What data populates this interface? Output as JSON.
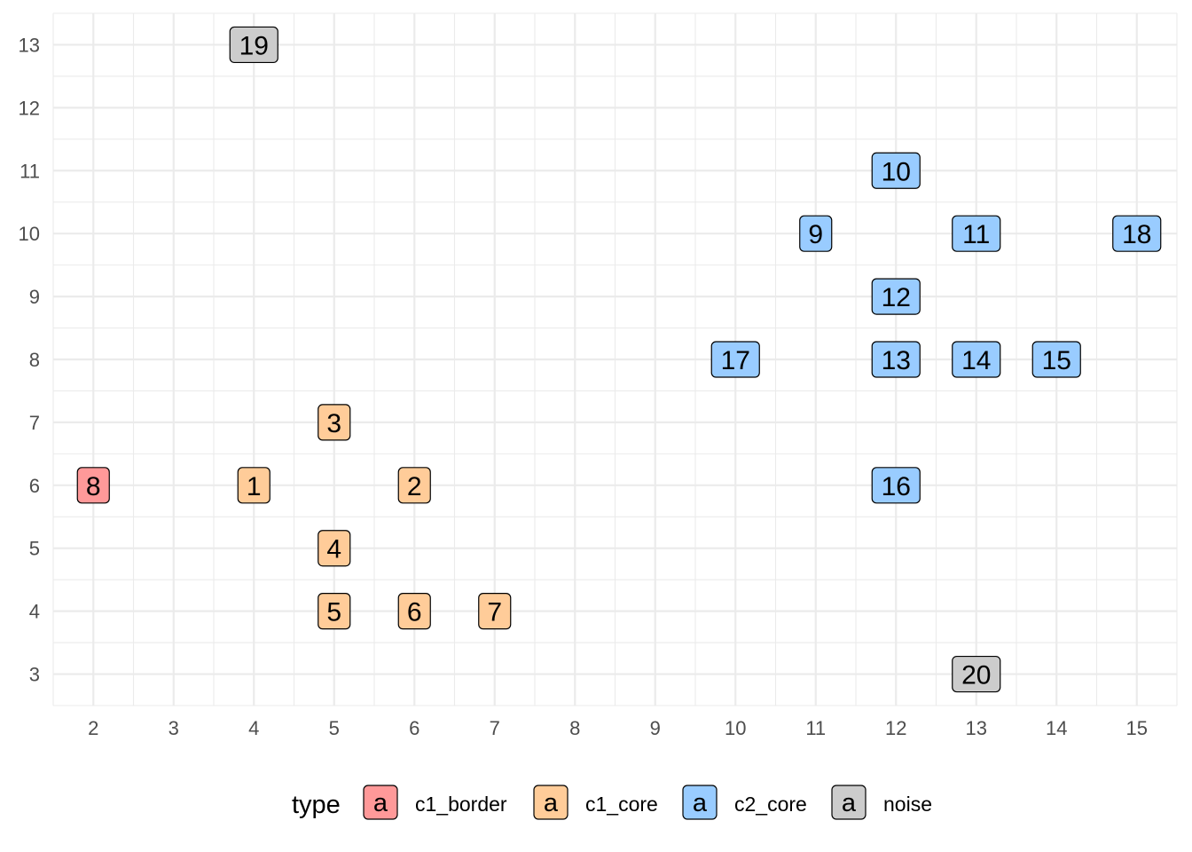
{
  "chart_data": {
    "type": "scatter",
    "title": "",
    "xlabel": "",
    "ylabel": "",
    "xlim": [
      1.5,
      15.5
    ],
    "ylim": [
      2.5,
      13.5
    ],
    "x_ticks": [
      2,
      3,
      4,
      5,
      6,
      7,
      8,
      9,
      10,
      11,
      12,
      13,
      14,
      15
    ],
    "y_ticks": [
      3,
      4,
      5,
      6,
      7,
      8,
      9,
      10,
      11,
      12,
      13
    ],
    "grid": true,
    "legend": {
      "title": "type",
      "placement": "bottom",
      "key_glyph": "a",
      "entries": [
        {
          "name": "c1_border",
          "color": "#ff9999"
        },
        {
          "name": "c1_core",
          "color": "#ffcc99"
        },
        {
          "name": "c2_core",
          "color": "#99ccff"
        },
        {
          "name": "noise",
          "color": "#cccccc"
        }
      ]
    },
    "points": [
      {
        "label": "1",
        "x": 4,
        "y": 6,
        "type": "c1_core"
      },
      {
        "label": "2",
        "x": 6,
        "y": 6,
        "type": "c1_core"
      },
      {
        "label": "3",
        "x": 5,
        "y": 7,
        "type": "c1_core"
      },
      {
        "label": "4",
        "x": 5,
        "y": 5,
        "type": "c1_core"
      },
      {
        "label": "5",
        "x": 5,
        "y": 4,
        "type": "c1_core"
      },
      {
        "label": "6",
        "x": 6,
        "y": 4,
        "type": "c1_core"
      },
      {
        "label": "7",
        "x": 7,
        "y": 4,
        "type": "c1_core"
      },
      {
        "label": "8",
        "x": 2,
        "y": 6,
        "type": "c1_border"
      },
      {
        "label": "9",
        "x": 11,
        "y": 10,
        "type": "c2_core"
      },
      {
        "label": "10",
        "x": 12,
        "y": 11,
        "type": "c2_core"
      },
      {
        "label": "11",
        "x": 13,
        "y": 10,
        "type": "c2_core"
      },
      {
        "label": "12",
        "x": 12,
        "y": 9,
        "type": "c2_core"
      },
      {
        "label": "13",
        "x": 12,
        "y": 8,
        "type": "c2_core"
      },
      {
        "label": "14",
        "x": 13,
        "y": 8,
        "type": "c2_core"
      },
      {
        "label": "15",
        "x": 14,
        "y": 8,
        "type": "c2_core"
      },
      {
        "label": "16",
        "x": 12,
        "y": 6,
        "type": "c2_core"
      },
      {
        "label": "17",
        "x": 10,
        "y": 8,
        "type": "c2_core"
      },
      {
        "label": "18",
        "x": 15,
        "y": 10,
        "type": "c2_core"
      },
      {
        "label": "19",
        "x": 4,
        "y": 13,
        "type": "noise"
      },
      {
        "label": "20",
        "x": 13,
        "y": 3,
        "type": "noise"
      }
    ]
  }
}
